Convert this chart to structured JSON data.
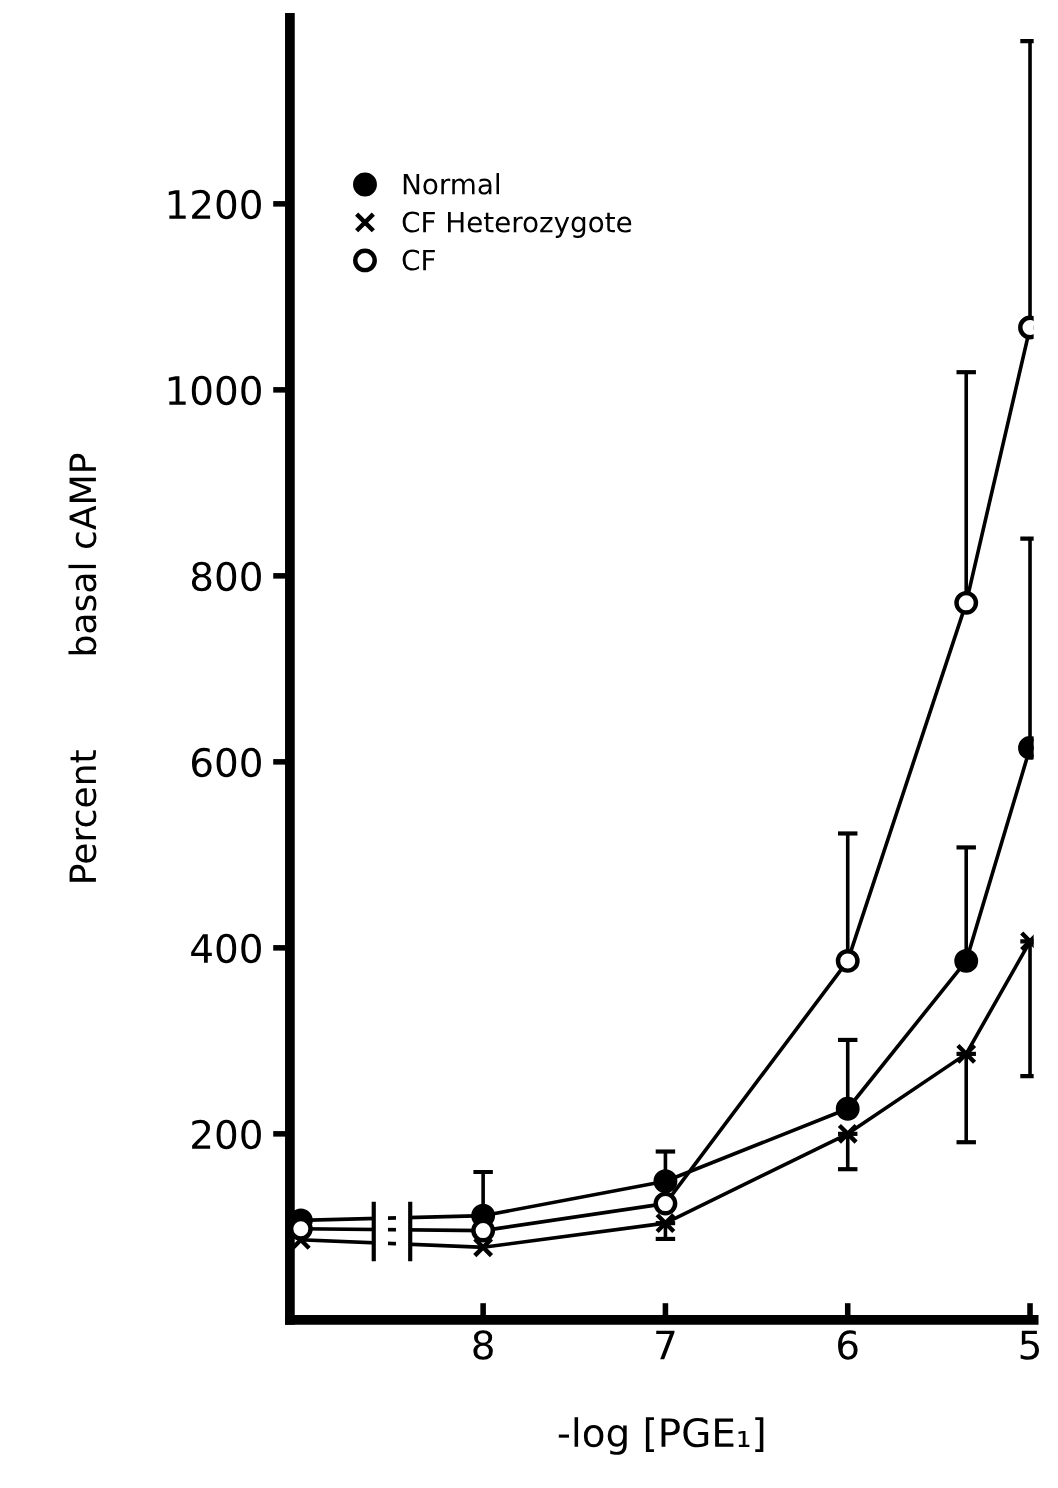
{
  "chart_data": {
    "type": "line",
    "xlabel": "-log [PGE₁]",
    "ylabel": "Percent        basal cAMP",
    "xlim": [
      9.06,
      4.98
    ],
    "ylim": [
      0,
      1400
    ],
    "xticks": [
      8,
      7,
      6,
      5
    ],
    "yticks": [
      200,
      400,
      600,
      800,
      1000,
      1200
    ],
    "grid": false,
    "legend": "top left",
    "line_style": "solid",
    "series": [
      {
        "name": "Normal",
        "color": "#000000",
        "marker": "circle",
        "x": [
          9.0,
          8,
          7,
          6,
          5.35,
          5.0
        ],
        "values": [
          107,
          112,
          149,
          227,
          386,
          615
        ],
        "errors": [
          null,
          [
            112,
            159
          ],
          [
            149,
            181
          ],
          [
            227,
            301
          ],
          [
            386,
            508
          ],
          [
            615,
            840
          ]
        ]
      },
      {
        "name": "CF Heterozygote",
        "color": "#000000",
        "marker": "cross",
        "x": [
          9.0,
          8,
          7,
          6,
          5.35,
          5.0
        ],
        "values": [
          86,
          78,
          104,
          200,
          286,
          407
        ],
        "errors": [
          null,
          null,
          [
            87,
            104
          ],
          [
            162,
            200
          ],
          [
            191,
            286
          ],
          [
            262,
            407
          ]
        ]
      },
      {
        "name": "CF",
        "color": "#000000",
        "marker": "circle",
        "x": [
          9.0,
          8,
          7,
          6,
          5.35,
          5.0
        ],
        "values": [
          98,
          96,
          125,
          386,
          771,
          1067
        ],
        "errors": [
          null,
          null,
          null,
          [
            386,
            523
          ],
          [
            771,
            1019
          ],
          [
            1067,
            1375
          ]
        ]
      }
    ]
  }
}
